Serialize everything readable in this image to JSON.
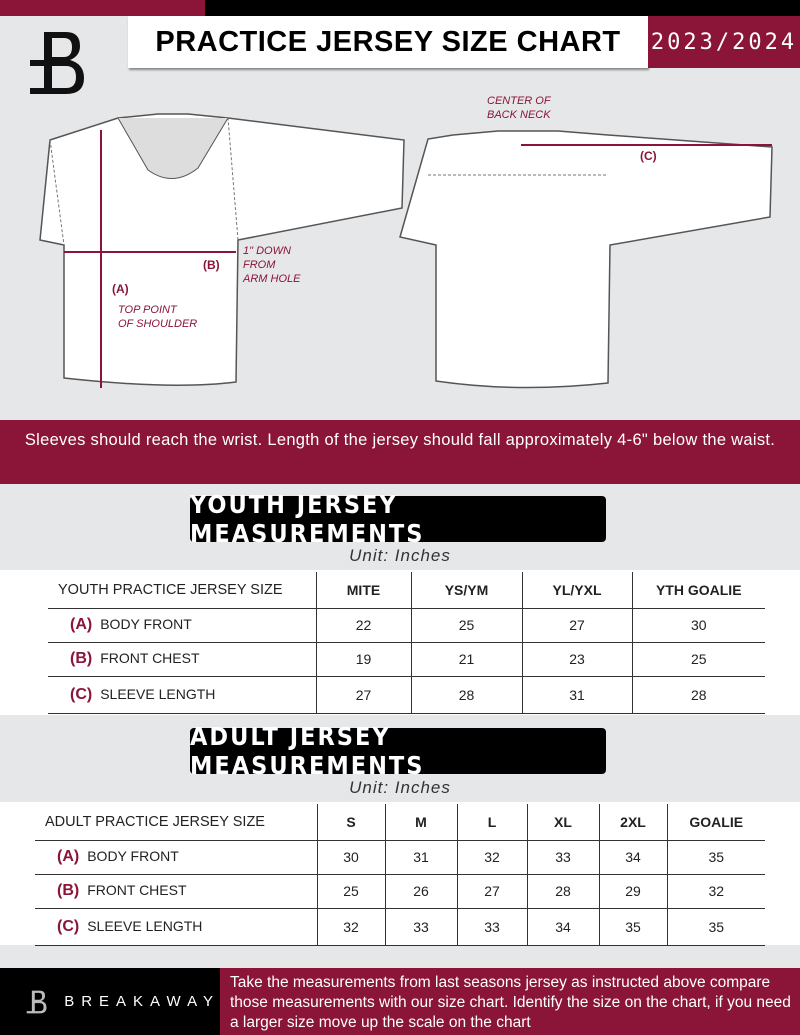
{
  "header": {
    "title": "PRACTICE JERSEY SIZE CHART",
    "season": "2023/2024",
    "logo": "B"
  },
  "diagram": {
    "front_labels": {
      "a": "(A)",
      "b": "(B)",
      "a_note": "TOP POINT\nOF SHOULDER",
      "b_note": "1\" DOWN\nFROM\nARM HOLE"
    },
    "back_labels": {
      "c": "(C)",
      "c_note": "CENTER OF\nBACK NECK"
    }
  },
  "note": "Sleeves should reach the wrist. Length of the jersey should fall approximately 4-6\" below the waist.",
  "youth": {
    "title": "YOUTH JERSEY MEASUREMENTS",
    "unit": "Unit: Inches",
    "header": "YOUTH PRACTICE JERSEY SIZE",
    "sizes": [
      "MITE",
      "YS/YM",
      "YL/YXL",
      "YTH GOALIE"
    ],
    "rows": [
      {
        "code": "(A)",
        "label": "BODY FRONT",
        "values": [
          "22",
          "25",
          "27",
          "30"
        ]
      },
      {
        "code": "(B)",
        "label": "FRONT CHEST",
        "values": [
          "19",
          "21",
          "23",
          "25"
        ]
      },
      {
        "code": "(C)",
        "label": "SLEEVE LENGTH",
        "values": [
          "27",
          "28",
          "31",
          "28"
        ]
      }
    ]
  },
  "adult": {
    "title": "ADULT JERSEY MEASUREMENTS",
    "unit": "Unit: Inches",
    "header": "ADULT PRACTICE JERSEY SIZE",
    "sizes": [
      "S",
      "M",
      "L",
      "XL",
      "2XL",
      "GOALIE"
    ],
    "rows": [
      {
        "code": "(A)",
        "label": "BODY FRONT",
        "values": [
          "30",
          "31",
          "32",
          "33",
          "34",
          "35"
        ]
      },
      {
        "code": "(B)",
        "label": "FRONT CHEST",
        "values": [
          "25",
          "26",
          "27",
          "28",
          "29",
          "32"
        ]
      },
      {
        "code": "(C)",
        "label": "SLEEVE LENGTH",
        "values": [
          "32",
          "33",
          "33",
          "34",
          "35",
          "35"
        ]
      }
    ]
  },
  "footer": {
    "brand": "BREAKAWAY",
    "text": "Take the measurements from last seasons jersey as instructed above compare those measurements  with our size chart. Identify the size on the chart, if you need a larger size move up the scale on the chart"
  },
  "colors": {
    "accent": "#8a1538",
    "background": "#e6e7e8"
  }
}
